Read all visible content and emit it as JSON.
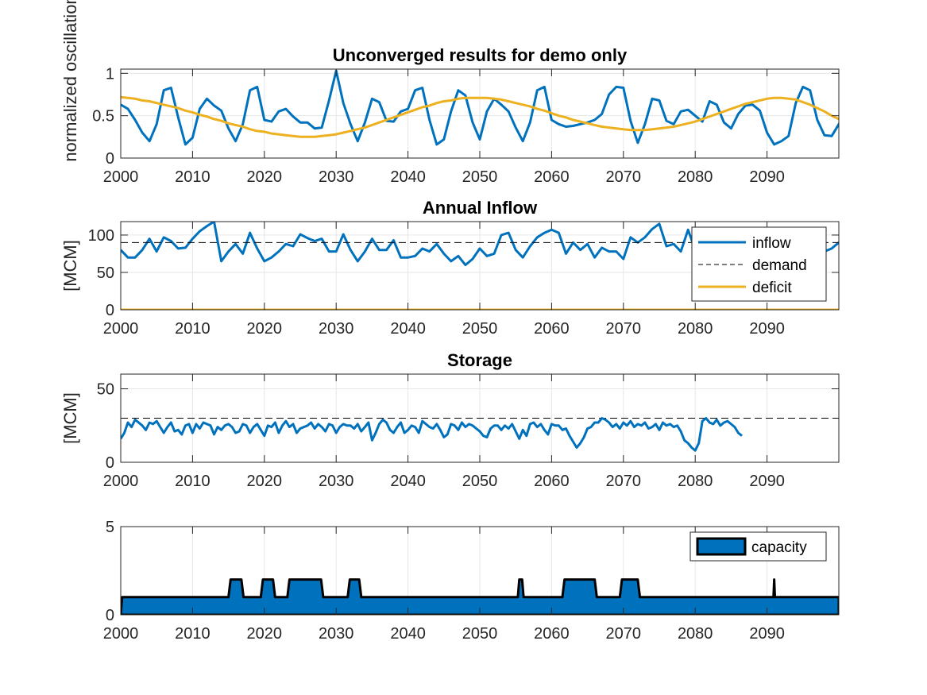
{
  "colors": {
    "blue": "#0072BD",
    "gold": "#EDB120",
    "grid": "#e6e6e6",
    "axis": "#262626",
    "demand": "#000000"
  },
  "chart_data": [
    {
      "type": "line",
      "title": "Unconverged results for demo only",
      "xlabel": "",
      "ylabel": "normalized oscillations",
      "xlim": [
        2000,
        2100
      ],
      "ylim": [
        0,
        1.05
      ],
      "xticks": [
        2000,
        2010,
        2020,
        2030,
        2040,
        2050,
        2060,
        2070,
        2080,
        2090
      ],
      "yticks": [
        0,
        0.5,
        1
      ],
      "ytick_labels": [
        "0",
        "0.5",
        "1"
      ],
      "grid": true,
      "series": [
        {
          "color": "#0072BD",
          "x_start": 2000,
          "x_step": 1,
          "values": [
            0.63,
            0.58,
            0.45,
            0.3,
            0.2,
            0.4,
            0.8,
            0.83,
            0.48,
            0.16,
            0.24,
            0.58,
            0.7,
            0.62,
            0.56,
            0.35,
            0.2,
            0.4,
            0.8,
            0.84,
            0.45,
            0.43,
            0.55,
            0.58,
            0.49,
            0.42,
            0.42,
            0.35,
            0.36,
            0.68,
            1.03,
            0.65,
            0.4,
            0.2,
            0.42,
            0.7,
            0.66,
            0.44,
            0.43,
            0.55,
            0.58,
            0.8,
            0.83,
            0.45,
            0.16,
            0.22,
            0.55,
            0.8,
            0.74,
            0.42,
            0.22,
            0.55,
            0.7,
            0.63,
            0.55,
            0.36,
            0.2,
            0.42,
            0.8,
            0.84,
            0.45,
            0.4,
            0.37,
            0.38,
            0.4,
            0.42,
            0.45,
            0.52,
            0.75,
            0.84,
            0.83,
            0.44,
            0.18,
            0.4,
            0.7,
            0.68,
            0.44,
            0.4,
            0.55,
            0.57,
            0.5,
            0.43,
            0.67,
            0.63,
            0.42,
            0.35,
            0.52,
            0.62,
            0.63,
            0.56,
            0.3,
            0.16,
            0.2,
            0.26,
            0.65,
            0.84,
            0.8,
            0.45,
            0.27,
            0.26,
            0.4,
            0.56,
            0.56
          ]
        },
        {
          "color": "#EDB120",
          "x_start": 2000,
          "x_step": 1,
          "values": [
            0.72,
            0.71,
            0.7,
            0.68,
            0.67,
            0.65,
            0.63,
            0.61,
            0.59,
            0.56,
            0.54,
            0.51,
            0.49,
            0.46,
            0.44,
            0.41,
            0.39,
            0.37,
            0.34,
            0.32,
            0.31,
            0.29,
            0.28,
            0.27,
            0.26,
            0.25,
            0.25,
            0.25,
            0.26,
            0.27,
            0.28,
            0.3,
            0.32,
            0.34,
            0.36,
            0.39,
            0.42,
            0.45,
            0.48,
            0.51,
            0.54,
            0.57,
            0.6,
            0.62,
            0.65,
            0.67,
            0.68,
            0.7,
            0.71,
            0.71,
            0.71,
            0.71,
            0.7,
            0.69,
            0.67,
            0.65,
            0.63,
            0.61,
            0.58,
            0.56,
            0.53,
            0.5,
            0.48,
            0.45,
            0.43,
            0.41,
            0.39,
            0.37,
            0.36,
            0.35,
            0.34,
            0.33,
            0.33,
            0.33,
            0.34,
            0.35,
            0.36,
            0.37,
            0.39,
            0.41,
            0.43,
            0.46,
            0.49,
            0.52,
            0.55,
            0.58,
            0.61,
            0.64,
            0.66,
            0.68,
            0.7,
            0.71,
            0.71,
            0.7,
            0.69,
            0.66,
            0.63,
            0.59,
            0.55,
            0.5,
            0.46,
            0.43,
            0.4
          ]
        }
      ]
    },
    {
      "type": "line",
      "title": "Annual Inflow",
      "xlabel": "",
      "ylabel": "[MCM]",
      "xlim": [
        2000,
        2100
      ],
      "ylim": [
        0,
        118
      ],
      "xticks": [
        2000,
        2010,
        2020,
        2030,
        2040,
        2050,
        2060,
        2070,
        2080,
        2090
      ],
      "yticks": [
        0,
        50,
        100
      ],
      "ytick_labels": [
        "0",
        "50",
        "100"
      ],
      "grid": true,
      "legend": {
        "position": "top-right",
        "entries": [
          "inflow",
          "demand",
          "deficit"
        ]
      },
      "series": [
        {
          "name": "inflow",
          "color": "#0072BD",
          "x_start": 2000,
          "x_step": 1,
          "values": [
            80,
            70,
            70,
            80,
            95,
            78,
            97,
            92,
            82,
            83,
            95,
            105,
            112,
            118,
            65,
            78,
            88,
            75,
            103,
            82,
            65,
            70,
            78,
            88,
            85,
            101,
            96,
            92,
            95,
            78,
            78,
            101,
            80,
            65,
            78,
            95,
            80,
            80,
            93,
            70,
            70,
            72,
            82,
            78,
            88,
            75,
            65,
            72,
            60,
            68,
            82,
            72,
            75,
            100,
            103,
            80,
            70,
            85,
            97,
            103,
            107,
            103,
            75,
            90,
            80,
            88,
            70,
            83,
            78,
            78,
            68,
            97,
            90,
            97,
            108,
            115,
            85,
            88,
            78,
            107,
            80,
            88,
            82,
            97,
            88,
            90,
            82,
            93,
            90,
            82,
            105,
            97,
            98,
            82,
            78,
            85,
            92,
            85,
            78,
            82,
            90,
            90
          ],
          "legend_label": "inflow"
        },
        {
          "name": "demand",
          "color": "#000000",
          "dashed": true,
          "constant": 90,
          "legend_label": "demand"
        },
        {
          "name": "deficit",
          "color": "#EDB120",
          "constant": 0,
          "legend_label": "deficit"
        }
      ]
    },
    {
      "type": "line",
      "title": "Storage",
      "xlabel": "",
      "ylabel": "[MCM]",
      "xlim": [
        2000,
        2100
      ],
      "ylim": [
        0,
        60
      ],
      "xticks": [
        2000,
        2010,
        2020,
        2030,
        2040,
        2050,
        2060,
        2070,
        2080,
        2090
      ],
      "yticks": [
        0,
        50
      ],
      "ytick_labels": [
        "0",
        "50"
      ],
      "grid": true,
      "storage_capacity": 30,
      "series": [
        {
          "color": "#0072BD",
          "x_start": 2000,
          "x_step": 0.5,
          "values": [
            16,
            20,
            27,
            24,
            29,
            27,
            25,
            22,
            27,
            26,
            28,
            24,
            20,
            24,
            27,
            21,
            22,
            19,
            25,
            26,
            20,
            26,
            23,
            27,
            26,
            25,
            19,
            24,
            22,
            25,
            26,
            24,
            20,
            21,
            26,
            25,
            20,
            24,
            26,
            22,
            18,
            25,
            24,
            27,
            20,
            25,
            28,
            24,
            26,
            20,
            23,
            24,
            25,
            27,
            23,
            26,
            24,
            21,
            26,
            25,
            20,
            24,
            26,
            25,
            25,
            23,
            26,
            21,
            24,
            27,
            15,
            20,
            26,
            29,
            27,
            22,
            20,
            24,
            27,
            20,
            22,
            25,
            24,
            20,
            28,
            26,
            24,
            23,
            26,
            22,
            17,
            19,
            26,
            25,
            22,
            27,
            24,
            26,
            25,
            23,
            21,
            18,
            17,
            23,
            25,
            25,
            22,
            25,
            23,
            26,
            21,
            16,
            22,
            18,
            26,
            27,
            24,
            26,
            22,
            19,
            26,
            25,
            25,
            22,
            23,
            18,
            14,
            10,
            13,
            17,
            23,
            24,
            27,
            27,
            30,
            29,
            27,
            24,
            26,
            23,
            27,
            25,
            28,
            24,
            26,
            25,
            27,
            23,
            24,
            26,
            22,
            27,
            25,
            26,
            24,
            25,
            21,
            15,
            13,
            10,
            8,
            13,
            28,
            30,
            27,
            26,
            29,
            25,
            27,
            28,
            26,
            24,
            20,
            18
          ],
          "x_step_note": ""
        }
      ]
    },
    {
      "type": "area",
      "title": "",
      "xlabel": "",
      "ylabel": "",
      "xlim": [
        2000,
        2100
      ],
      "ylim": [
        0,
        5
      ],
      "xticks": [
        2000,
        2010,
        2020,
        2030,
        2040,
        2050,
        2060,
        2070,
        2080,
        2090
      ],
      "yticks": [
        0,
        5
      ],
      "ytick_labels": [
        "0",
        "5"
      ],
      "grid": true,
      "legend": {
        "position": "top-right",
        "entries": [
          "capacity"
        ]
      },
      "series": [
        {
          "name": "capacity",
          "color": "#0072BD",
          "steps": [
            [
              2000,
              0
            ],
            [
              2000.2,
              1
            ],
            [
              2015,
              1
            ],
            [
              2015.3,
              2
            ],
            [
              2016.8,
              2
            ],
            [
              2017.1,
              1
            ],
            [
              2019.5,
              1
            ],
            [
              2019.8,
              2
            ],
            [
              2021.2,
              2
            ],
            [
              2021.5,
              1
            ],
            [
              2023.2,
              1
            ],
            [
              2023.5,
              2
            ],
            [
              2027.9,
              2
            ],
            [
              2028.2,
              1
            ],
            [
              2031.6,
              1
            ],
            [
              2031.9,
              2
            ],
            [
              2033.2,
              2
            ],
            [
              2033.5,
              1
            ],
            [
              2055.3,
              1
            ],
            [
              2055.5,
              2
            ],
            [
              2055.9,
              2
            ],
            [
              2056.1,
              1
            ],
            [
              2061.5,
              1
            ],
            [
              2061.8,
              2
            ],
            [
              2066.0,
              2
            ],
            [
              2066.3,
              1
            ],
            [
              2069.5,
              1
            ],
            [
              2069.8,
              2
            ],
            [
              2072.0,
              2
            ],
            [
              2072.3,
              1
            ],
            [
              2090.9,
              1
            ],
            [
              2091.0,
              2
            ],
            [
              2091.1,
              1
            ],
            [
              2100,
              1
            ]
          ],
          "legend_label": "capacity"
        }
      ]
    }
  ]
}
